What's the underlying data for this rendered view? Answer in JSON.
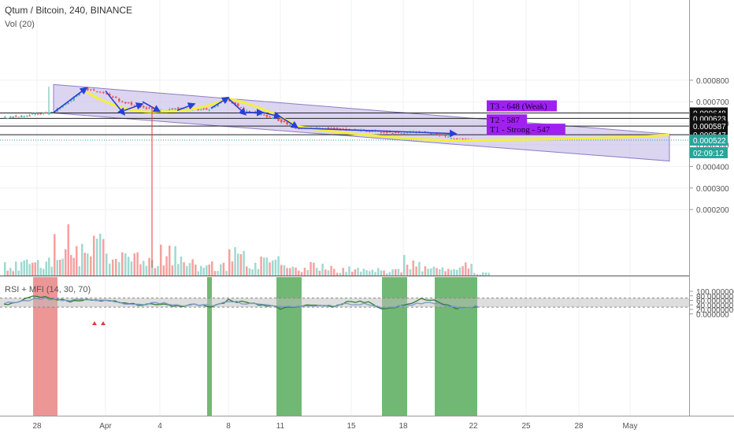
{
  "header": {
    "symbol_title": "Qtum / Bitcoin, 240, BINANCE",
    "volume_label": "Vol (20)",
    "indicator_label": "RSI + MFI (14, 30, 70)"
  },
  "price_axis": {
    "ticks": [
      "0.000800",
      "0.000700",
      "0.000600",
      "0.000500",
      "0.000400",
      "0.000300",
      "0.000200"
    ],
    "badges": [
      {
        "text": "0.000648",
        "style": "dark"
      },
      {
        "text": "0.000623",
        "style": "dark"
      },
      {
        "text": "0.000587",
        "style": "dark"
      },
      {
        "text": "0.000547",
        "style": "dark"
      },
      {
        "text": "0.000522",
        "style": "teal"
      },
      {
        "text": "02:09:12",
        "style": "teal"
      }
    ]
  },
  "indicator_axis": {
    "ticks": [
      "100.000000",
      "80.000000",
      "60.000000",
      "40.000000",
      "20.000000",
      "0.000000"
    ]
  },
  "time_axis": {
    "ticks": [
      "28",
      "Apr",
      "4",
      "8",
      "11",
      "15",
      "18",
      "22",
      "25",
      "28",
      "May"
    ]
  },
  "annotations": {
    "t3": "T3 - 648 (Weak)",
    "t2": "T2 - 587",
    "t1": "T1 - Strong - 547"
  },
  "colors": {
    "up": "#53b9a9",
    "down": "#ef5350",
    "channel_fill": "#c7bfe8",
    "channel_line": "#8e7cc3",
    "arc": "#f3ef3c",
    "arrow": "#2a3fd6",
    "tag_bg": "#a020f0",
    "teal": "#26a69a",
    "dark_badge": "#111111",
    "rsi": "#2e7d32",
    "mfi": "#7b9acb",
    "green_zone": "#43a047",
    "red_zone": "#e57373"
  },
  "chart_data": [
    {
      "type": "candlestick",
      "title": "Qtum / Bitcoin, 240, BINANCE",
      "ylim": [
        0.00025,
        0.00083
      ],
      "horizontal_levels": [
        0.000648,
        0.000623,
        0.000587,
        0.000547
      ],
      "last_price": 0.000522,
      "channel_top": {
        "start": [
          "Mar 29",
          0.00078
        ],
        "end": [
          "May 1",
          0.00055
        ]
      },
      "channel_bottom": {
        "start": [
          "Mar 29",
          0.000648
        ],
        "end": [
          "May 1",
          0.000425
        ]
      },
      "path_close": [
        [
          "Mar 26",
          0.000625
        ],
        [
          "Mar 27",
          0.000633
        ],
        [
          "Mar 28",
          0.000645
        ],
        [
          "Mar 29",
          0.00065
        ],
        [
          "Mar 30",
          0.0007
        ],
        [
          "Mar 31",
          0.00076
        ],
        [
          "Apr 1",
          0.00074
        ],
        [
          "Apr 2",
          0.0007
        ],
        [
          "Apr 3",
          0.00068
        ],
        [
          "Apr 4",
          0.000655
        ],
        [
          "Apr 5",
          0.00067
        ],
        [
          "Apr 6",
          0.000665
        ],
        [
          "Apr 7",
          0.000665
        ],
        [
          "Apr 8",
          0.000715
        ],
        [
          "Apr 9",
          0.00066
        ],
        [
          "Apr 10",
          0.00064
        ],
        [
          "Apr 11",
          0.000615
        ],
        [
          "Apr 12",
          0.00058
        ],
        [
          "Apr 13",
          0.000578
        ],
        [
          "Apr 14",
          0.000575
        ],
        [
          "Apr 15",
          0.00057
        ],
        [
          "Apr 16",
          0.000565
        ],
        [
          "Apr 17",
          0.00056
        ],
        [
          "Apr 18",
          0.000555
        ],
        [
          "Apr 19",
          0.00056
        ],
        [
          "Apr 20",
          0.000552
        ],
        [
          "Apr 21",
          0.000525
        ],
        [
          "Apr 22",
          0.000522
        ]
      ]
    },
    {
      "type": "bar",
      "title": "Vol (20)",
      "categories": [
        "Mar 26",
        "Mar 27",
        "Mar 28",
        "Mar 29",
        "Mar 30",
        "Mar 31",
        "Apr 1",
        "Apr 2",
        "Apr 3",
        "Apr 4",
        "Apr 5",
        "Apr 6",
        "Apr 7",
        "Apr 8",
        "Apr 9",
        "Apr 10",
        "Apr 11",
        "Apr 12",
        "Apr 13",
        "Apr 14",
        "Apr 15",
        "Apr 16",
        "Apr 17",
        "Apr 18",
        "Apr 19",
        "Apr 20",
        "Apr 21",
        "Apr 22"
      ],
      "values": [
        22,
        25,
        30,
        85,
        50,
        88,
        45,
        40,
        35,
        55,
        28,
        24,
        22,
        62,
        35,
        28,
        22,
        20,
        18,
        15,
        14,
        12,
        12,
        30,
        14,
        12,
        22,
        5
      ],
      "ylim": [
        0,
        100
      ]
    },
    {
      "type": "line",
      "title": "RSI + MFI (14, 30, 70)",
      "ylim": [
        -10,
        110
      ],
      "band": [
        30,
        70
      ],
      "x": [
        "Mar 26",
        "Mar 27",
        "Mar 28",
        "Mar 29",
        "Mar 30",
        "Mar 31",
        "Apr 1",
        "Apr 2",
        "Apr 3",
        "Apr 4",
        "Apr 5",
        "Apr 6",
        "Apr 7",
        "Apr 8",
        "Apr 9",
        "Apr 10",
        "Apr 11",
        "Apr 12",
        "Apr 13",
        "Apr 14",
        "Apr 15",
        "Apr 16",
        "Apr 17",
        "Apr 18",
        "Apr 19",
        "Apr 20",
        "Apr 21",
        "Apr 22"
      ],
      "series": [
        {
          "name": "RSI",
          "values": [
            40,
            60,
            80,
            70,
            55,
            65,
            60,
            50,
            40,
            45,
            35,
            40,
            30,
            60,
            50,
            40,
            25,
            30,
            40,
            35,
            55,
            50,
            20,
            40,
            65,
            55,
            25,
            28
          ]
        },
        {
          "name": "MFI",
          "values": [
            45,
            55,
            70,
            65,
            60,
            60,
            58,
            45,
            42,
            48,
            40,
            42,
            38,
            55,
            48,
            42,
            30,
            32,
            35,
            38,
            45,
            42,
            28,
            35,
            48,
            45,
            28,
            32
          ]
        }
      ],
      "highlight_zones": [
        {
          "from": "Mar 28",
          "to": "Mar 29",
          "color": "red"
        },
        {
          "from": "Apr 7",
          "to": "Apr 7",
          "color": "green"
        },
        {
          "from": "Apr 11",
          "to": "Apr 12",
          "color": "green"
        },
        {
          "from": "Apr 17",
          "to": "Apr 18",
          "color": "green"
        },
        {
          "from": "Apr 20",
          "to": "Apr 22",
          "color": "green"
        }
      ]
    }
  ]
}
